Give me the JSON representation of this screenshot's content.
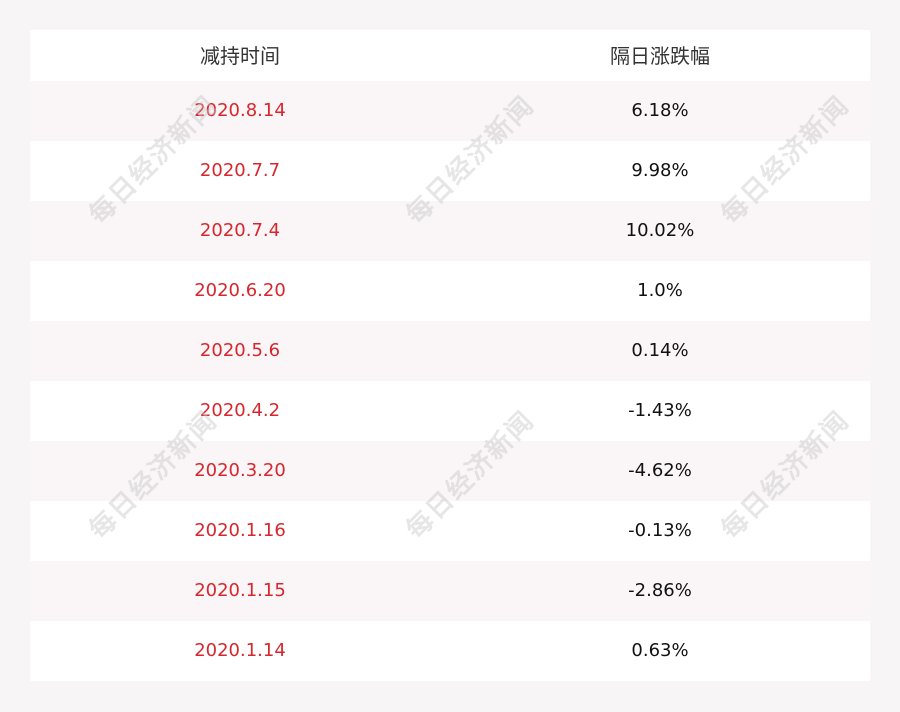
{
  "chart_data": {
    "type": "table",
    "columns": [
      "减持时间",
      "隔日涨跌幅"
    ],
    "rows": [
      {
        "date": "2020.8.14",
        "change": "6.18%"
      },
      {
        "date": "2020.7.7",
        "change": "9.98%"
      },
      {
        "date": "2020.7.4",
        "change": "10.02%"
      },
      {
        "date": "2020.6.20",
        "change": "1.0%"
      },
      {
        "date": "2020.5.6",
        "change": "0.14%"
      },
      {
        "date": "2020.4.2",
        "change": "-1.43%"
      },
      {
        "date": "2020.3.20",
        "change": "-4.62%"
      },
      {
        "date": "2020.1.16",
        "change": "-0.13%"
      },
      {
        "date": "2020.1.15",
        "change": "-2.86%"
      },
      {
        "date": "2020.1.14",
        "change": "0.63%"
      }
    ]
  },
  "watermark": "每日经济新闻",
  "colors": {
    "date_text": "#d7262d",
    "value_text": "#111111",
    "header_text": "#333333"
  }
}
